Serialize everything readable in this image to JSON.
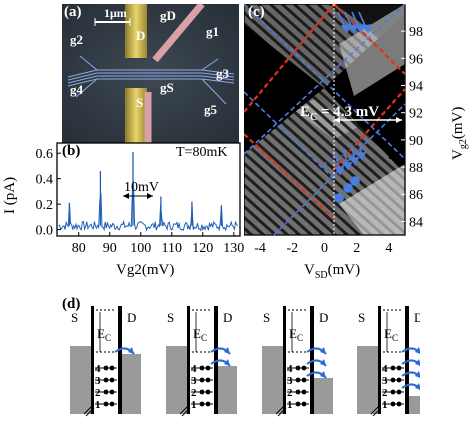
{
  "panel_a": {
    "label": "(a)",
    "scale_bar": "1μm",
    "gates": [
      "g2",
      "g1",
      "g3",
      "g4",
      "gS",
      "g5"
    ],
    "gD": "gD",
    "drain": "D",
    "source": "S"
  },
  "panel_b": {
    "label": "(b)",
    "temperature": "T=80mK",
    "annotation": "10mV",
    "ylabel": "I (pA)",
    "xlabel": "Vg2(mV)",
    "yticks": [
      "0.6",
      "0.4",
      "0.2",
      "0.0"
    ],
    "xticks": [
      "80",
      "90",
      "100",
      "110",
      "120",
      "130"
    ]
  },
  "panel_c": {
    "label": "(c)",
    "ec_label": "E",
    "ec_sub": "C",
    "ec_value": " = 4.3 mV",
    "ylabel_main": "V",
    "ylabel_sub": "g2",
    "ylabel_unit": "(mV)",
    "xlabel_main": "V",
    "xlabel_sub": "SD",
    "xlabel_unit": "(mV)",
    "yticks": [
      "98",
      "96",
      "94",
      "92",
      "90",
      "88",
      "86",
      "84"
    ],
    "xticks": [
      "-4",
      "-2",
      "0",
      "2",
      "4"
    ],
    "level_labels": [
      "1",
      "2",
      "3",
      "4"
    ]
  },
  "panel_d": {
    "label": "(d)",
    "source": "S",
    "drain": "D",
    "ec_main": "E",
    "ec_sub": "C",
    "level_numbers": [
      "1",
      "2",
      "3",
      "4"
    ]
  },
  "chart_data": [
    {
      "type": "line",
      "panel": "(b)",
      "xlabel": "Vg2(mV)",
      "ylabel": "I (pA)",
      "xlim": [
        73,
        132
      ],
      "ylim": [
        -0.05,
        0.68
      ],
      "peaks_x": [
        77,
        87,
        97.5,
        106.5,
        116.5,
        126
      ],
      "peaks_y": [
        0.21,
        0.46,
        0.61,
        0.26,
        0.22,
        0.19
      ],
      "baseline": 0.03
    },
    {
      "type": "heatmap",
      "panel": "(c)",
      "xlabel": "VSD(mV)",
      "ylabel": "Vg2(mV)",
      "xlim": [
        -5,
        5
      ],
      "ylim": [
        83,
        100
      ]
    }
  ]
}
